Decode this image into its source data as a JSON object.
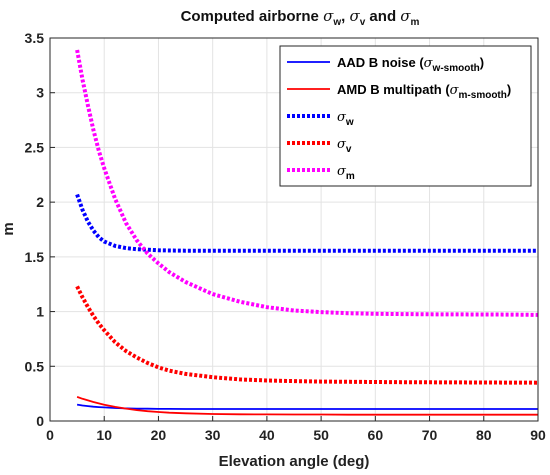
{
  "chart_data": {
    "type": "line",
    "title": {
      "prefix": "Computed airborne ",
      "sigma": "σ",
      "sub_w": "w",
      "sep1": ", ",
      "sub_v": "v",
      "sep2": " and ",
      "sub_m": "m"
    },
    "xlabel": "Elevation angle (deg)",
    "ylabel": "m",
    "xlim": [
      0,
      90
    ],
    "ylim": [
      0,
      3.5
    ],
    "xticks": [
      "0",
      "10",
      "20",
      "30",
      "40",
      "50",
      "60",
      "70",
      "80",
      "90"
    ],
    "yticks": [
      "0",
      "0.5",
      "1",
      "1.5",
      "2",
      "2.5",
      "3",
      "3.5"
    ],
    "grid": true,
    "legend_position": "top-right",
    "x": [
      5,
      6,
      7,
      8,
      9,
      10,
      12,
      14,
      16,
      18,
      20,
      22,
      25,
      30,
      35,
      40,
      45,
      50,
      55,
      60,
      65,
      70,
      75,
      80,
      85,
      90
    ],
    "series": [
      {
        "name_main": "AAD B noise (",
        "name_sym": "σ",
        "name_sub": "w-smooth",
        "name_close": ")",
        "color": "#0000ff",
        "style": "solid",
        "values": [
          0.15,
          0.142,
          0.136,
          0.131,
          0.127,
          0.124,
          0.119,
          0.115,
          0.113,
          0.112,
          0.111,
          0.111,
          0.11,
          0.11,
          0.11,
          0.11,
          0.11,
          0.11,
          0.11,
          0.11,
          0.11,
          0.11,
          0.11,
          0.11,
          0.11,
          0.11
        ]
      },
      {
        "name_main": "AMD B multipath (",
        "name_sym": "σ",
        "name_sub": "m-smooth",
        "name_close": ")",
        "color": "#ff0000",
        "style": "solid",
        "values": [
          0.22,
          0.203,
          0.188,
          0.174,
          0.161,
          0.149,
          0.129,
          0.113,
          0.1,
          0.09,
          0.082,
          0.076,
          0.07,
          0.064,
          0.061,
          0.06,
          0.059,
          0.059,
          0.058,
          0.058,
          0.058,
          0.058,
          0.058,
          0.058,
          0.058,
          0.058
        ]
      },
      {
        "name_main": "",
        "name_sym": "σ",
        "name_sub": "w",
        "name_close": "",
        "color": "#0000ff",
        "style": "dotted",
        "values": [
          2.07,
          1.93,
          1.82,
          1.74,
          1.68,
          1.64,
          1.6,
          1.58,
          1.57,
          1.565,
          1.56,
          1.558,
          1.556,
          1.555,
          1.555,
          1.555,
          1.555,
          1.555,
          1.555,
          1.555,
          1.555,
          1.555,
          1.555,
          1.555,
          1.555,
          1.555
        ]
      },
      {
        "name_main": "",
        "name_sym": "σ",
        "name_sub": "v",
        "name_close": "",
        "color": "#ff0000",
        "style": "dotted",
        "values": [
          1.23,
          1.13,
          1.04,
          0.96,
          0.89,
          0.83,
          0.72,
          0.64,
          0.58,
          0.53,
          0.49,
          0.46,
          0.43,
          0.4,
          0.38,
          0.37,
          0.365,
          0.36,
          0.358,
          0.356,
          0.355,
          0.354,
          0.353,
          0.352,
          0.351,
          0.35
        ]
      },
      {
        "name_main": "",
        "name_sym": "σ",
        "name_sub": "m",
        "name_close": "",
        "color": "#ff00ff",
        "style": "dotted",
        "values": [
          3.39,
          3.12,
          2.88,
          2.66,
          2.47,
          2.31,
          2.03,
          1.81,
          1.65,
          1.53,
          1.44,
          1.36,
          1.27,
          1.16,
          1.09,
          1.04,
          1.01,
          0.995,
          0.985,
          0.98,
          0.977,
          0.975,
          0.974,
          0.973,
          0.972,
          0.97
        ]
      }
    ]
  }
}
